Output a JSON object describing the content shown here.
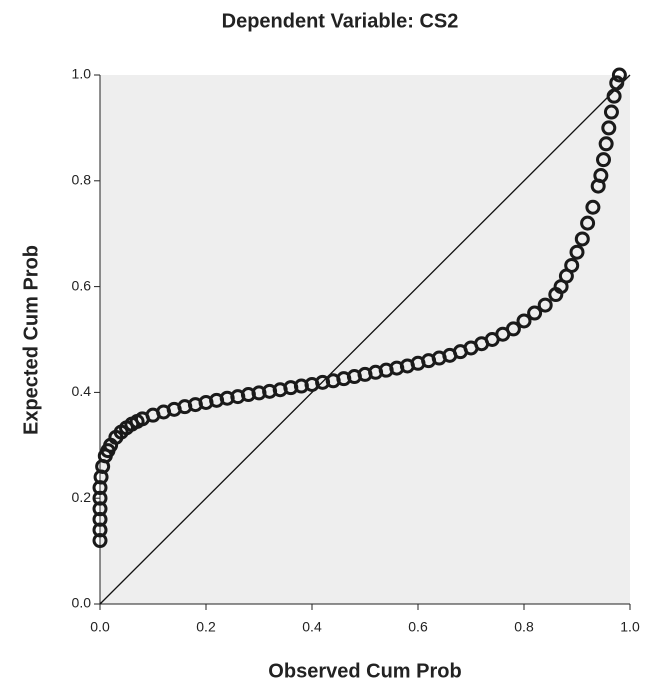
{
  "chart_data": {
    "type": "scatter",
    "title": "Dependent Variable: CS2",
    "x_label": "Observed Cum Prob",
    "y_label": "Expected Cum Prob",
    "x": [
      0,
      0,
      0,
      0,
      0,
      0,
      0.002,
      0.005,
      0.01,
      0.015,
      0.02,
      0.03,
      0.04,
      0.05,
      0.06,
      0.07,
      0.08,
      0.1,
      0.12,
      0.14,
      0.16,
      0.18,
      0.2,
      0.22,
      0.24,
      0.26,
      0.28,
      0.3,
      0.32,
      0.34,
      0.36,
      0.38,
      0.4,
      0.42,
      0.44,
      0.46,
      0.48,
      0.5,
      0.52,
      0.54,
      0.56,
      0.58,
      0.6,
      0.62,
      0.64,
      0.66,
      0.68,
      0.7,
      0.72,
      0.74,
      0.76,
      0.78,
      0.8,
      0.82,
      0.84,
      0.86,
      0.87,
      0.88,
      0.89,
      0.9,
      0.91,
      0.92,
      0.93,
      0.94,
      0.945,
      0.95,
      0.955,
      0.96,
      0.965,
      0.97,
      0.975,
      0.98
    ],
    "values": [
      0.12,
      0.14,
      0.16,
      0.18,
      0.2,
      0.22,
      0.24,
      0.26,
      0.28,
      0.29,
      0.3,
      0.315,
      0.325,
      0.333,
      0.34,
      0.345,
      0.35,
      0.357,
      0.363,
      0.368,
      0.373,
      0.377,
      0.381,
      0.385,
      0.389,
      0.392,
      0.396,
      0.399,
      0.402,
      0.405,
      0.409,
      0.412,
      0.415,
      0.419,
      0.422,
      0.426,
      0.43,
      0.434,
      0.438,
      0.442,
      0.446,
      0.45,
      0.455,
      0.46,
      0.465,
      0.47,
      0.477,
      0.484,
      0.492,
      0.5,
      0.51,
      0.52,
      0.535,
      0.55,
      0.565,
      0.585,
      0.6,
      0.62,
      0.64,
      0.665,
      0.69,
      0.72,
      0.75,
      0.79,
      0.81,
      0.84,
      0.87,
      0.9,
      0.93,
      0.96,
      0.985,
      1.0
    ],
    "color": "#1a1a1a",
    "xlim": [
      0,
      1
    ],
    "ylim": [
      0,
      1
    ],
    "xticks": [
      {
        "value": 0,
        "label": "0.0"
      },
      0.2,
      0.4,
      0.6,
      0.8,
      {
        "value": 1,
        "label": "1.0"
      }
    ],
    "yticks": [
      {
        "value": 0,
        "label": "0.0"
      },
      0.2,
      0.4,
      0.6,
      0.8,
      {
        "value": 1,
        "label": "1.0"
      }
    ],
    "reference_line": true
  }
}
